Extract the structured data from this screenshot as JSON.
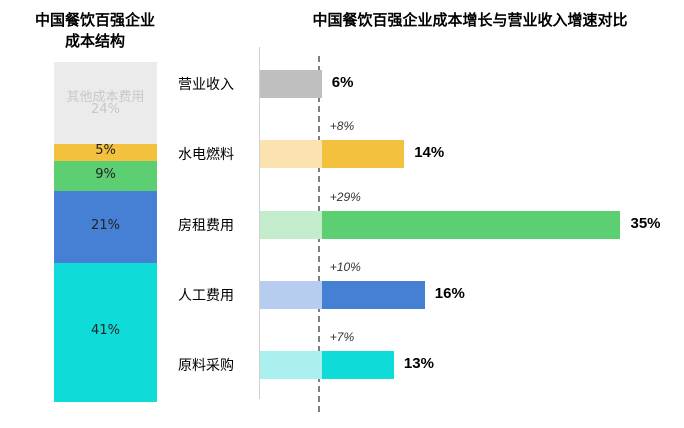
{
  "chart_data": [
    {
      "type": "bar",
      "stacked": true,
      "title": "中国餐饮百强企业成本结构",
      "title_lines": [
        "中国餐饮百强企业",
        "成本结构"
      ],
      "categories": [
        "其他成本费用",
        "",
        "",
        "",
        ""
      ],
      "values": [
        24,
        5,
        9,
        21,
        41
      ],
      "value_labels": [
        "24%",
        "5%",
        "9%",
        "21%",
        "41%"
      ],
      "colors": [
        "#ebebeb",
        "#f4c13f",
        "#5ccf73",
        "#4680d4",
        "#0fdcd8"
      ],
      "series_key": [
        "其他成本费用",
        "水电燃料",
        "房租费用",
        "人工费用",
        "原料采购"
      ]
    },
    {
      "type": "bar",
      "orientation": "horizontal",
      "title": "中国餐饮百强企业成本增长与营业收入增速对比",
      "categories": [
        "营业收入",
        "水电燃料",
        "房租费用",
        "人工费用",
        "原料采购"
      ],
      "values": [
        6,
        14,
        35,
        16,
        13
      ],
      "value_labels": [
        "6%",
        "14%",
        "35%",
        "16%",
        "13%"
      ],
      "deltas": [
        null,
        8,
        29,
        10,
        7
      ],
      "delta_labels": [
        "",
        "+8%",
        "+29%",
        "+10%",
        "+7%"
      ],
      "baseline": 6,
      "colors": [
        "#bfbfbf",
        "#f4c13f",
        "#5ccf73",
        "#4680d4",
        "#0fdcd8"
      ],
      "light_colors": [
        "#bfbfbf",
        "#fae3b1",
        "#c2eccb",
        "#b7cdef",
        "#a9f0ef"
      ]
    }
  ]
}
